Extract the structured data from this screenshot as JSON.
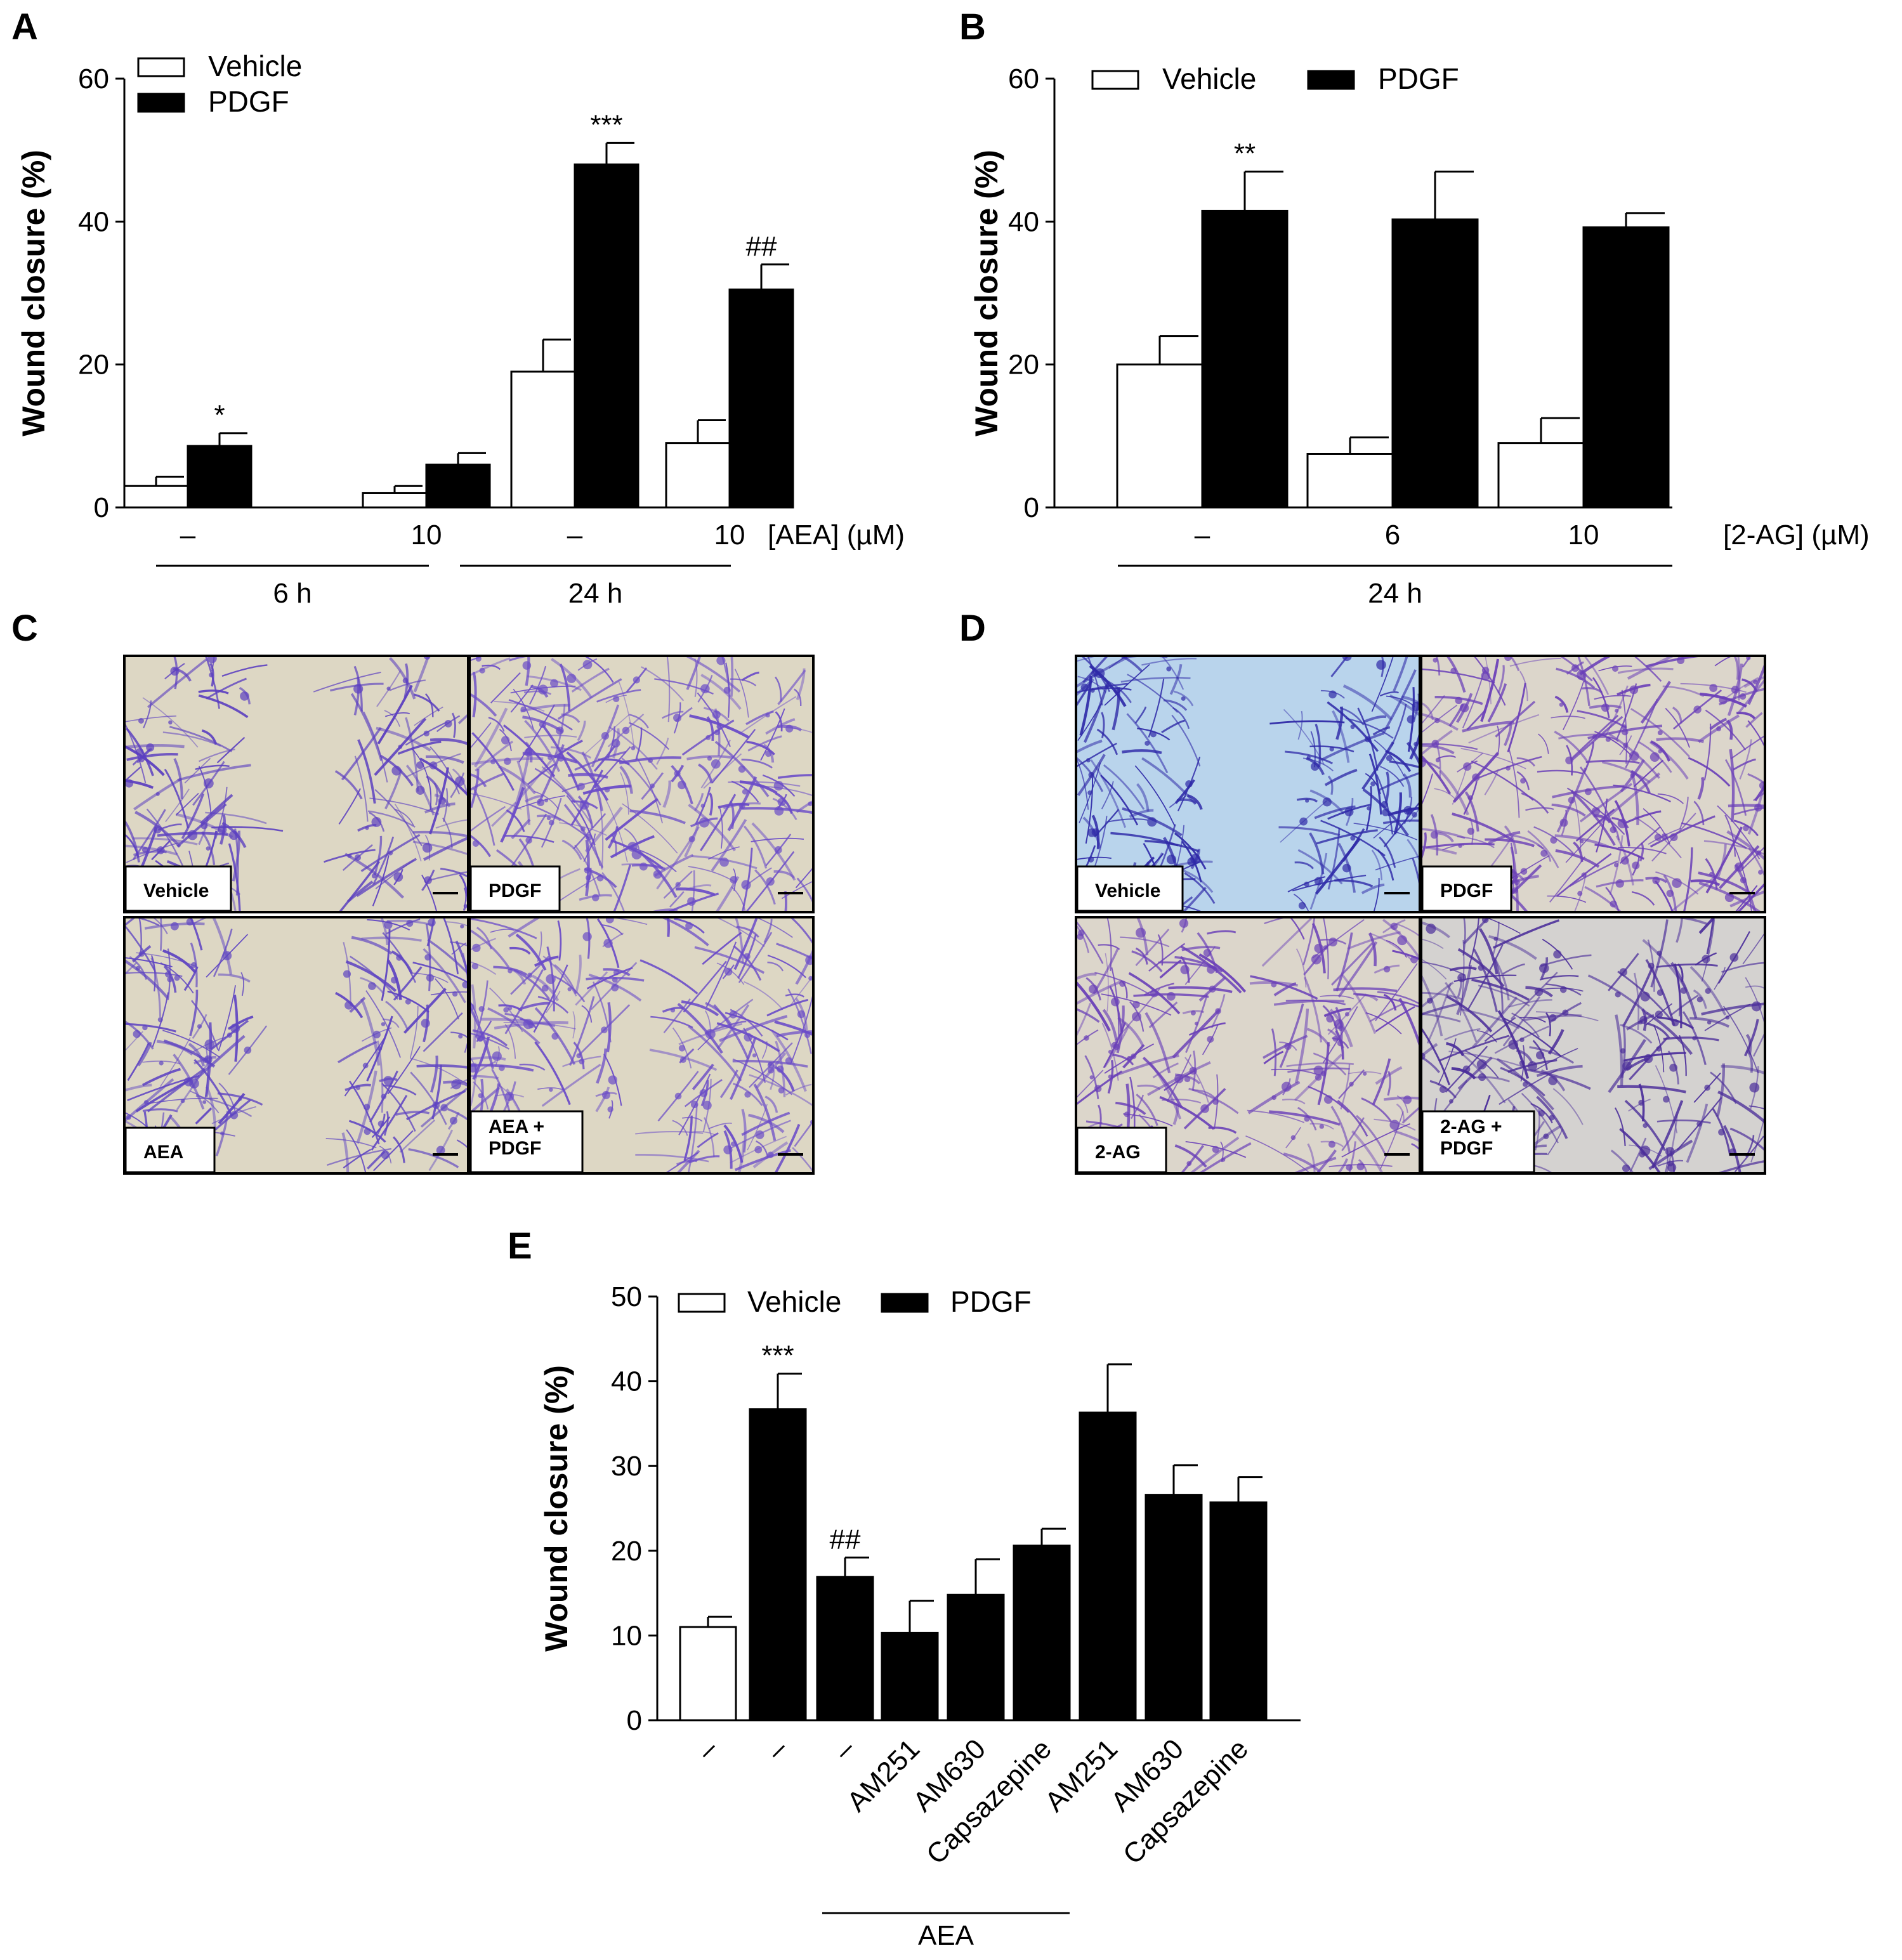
{
  "chart_data": [
    {
      "panel": "A",
      "type": "bar",
      "ylabel": "Wound closure (%)",
      "ylim": [
        0,
        60
      ],
      "yticks": [
        0,
        20,
        40,
        60
      ],
      "categories": [
        "–",
        "10",
        "–",
        "10"
      ],
      "category_axis_label": "[AEA] (µM)",
      "groups": [
        {
          "label": "6 h",
          "categories": [
            0,
            1
          ]
        },
        {
          "label": "24 h",
          "categories": [
            2,
            3
          ]
        }
      ],
      "series": [
        {
          "name": "Vehicle",
          "fill": "#ffffff",
          "values": [
            3,
            2,
            19,
            9
          ],
          "errors": [
            1.3,
            1.0,
            4.5,
            3.2
          ]
        },
        {
          "name": "PDGF",
          "fill": "#000000",
          "values": [
            8.6,
            6,
            48,
            30.5
          ],
          "errors": [
            1.8,
            1.6,
            3,
            3.5
          ]
        }
      ],
      "annotations": [
        {
          "category": 0,
          "series": "PDGF",
          "text": "*"
        },
        {
          "category": 2,
          "series": "PDGF",
          "text": "***"
        },
        {
          "category": 3,
          "series": "PDGF",
          "text": "##"
        }
      ],
      "legend": "top-left"
    },
    {
      "panel": "B",
      "type": "bar",
      "ylabel": "Wound closure (%)",
      "ylim": [
        0,
        60
      ],
      "yticks": [
        0,
        20,
        40,
        60
      ],
      "categories": [
        "–",
        "6",
        "10"
      ],
      "category_axis_label": "[2-AG] (µM)",
      "groups": [
        {
          "label": "24 h",
          "categories": [
            0,
            1,
            2
          ]
        }
      ],
      "series": [
        {
          "name": "Vehicle",
          "fill": "#ffffff",
          "values": [
            20,
            7.5,
            9
          ],
          "errors": [
            4,
            2.3,
            3.5
          ]
        },
        {
          "name": "PDGF",
          "fill": "#000000",
          "values": [
            41.5,
            40.3,
            39.2
          ],
          "errors": [
            5.5,
            6.7,
            2
          ]
        }
      ],
      "annotations": [
        {
          "category": 0,
          "series": "PDGF",
          "text": "**"
        }
      ],
      "legend": "top"
    },
    {
      "panel": "E",
      "type": "bar",
      "ylabel": "Wound closure (%)",
      "ylim": [
        0,
        50
      ],
      "yticks": [
        0,
        10,
        20,
        30,
        40,
        50
      ],
      "categories": [
        "–",
        "–",
        "–",
        "AM251",
        "AM630",
        "Capsazepine",
        "AM251",
        "AM630",
        "Capsazepine"
      ],
      "values": [
        11,
        36.7,
        16.9,
        10.3,
        14.8,
        20.6,
        36.3,
        26.6,
        25.7
      ],
      "errors": [
        1.2,
        4.2,
        2.3,
        3.8,
        4.2,
        2.0,
        5.7,
        3.5,
        3.0
      ],
      "bar_series": [
        "Vehicle",
        "PDGF",
        "PDGF",
        "PDGF",
        "PDGF",
        "PDGF",
        "PDGF",
        "PDGF",
        "PDGF"
      ],
      "series": [
        {
          "name": "Vehicle",
          "fill": "#ffffff"
        },
        {
          "name": "PDGF",
          "fill": "#000000"
        }
      ],
      "groups": [
        {
          "label": "AEA",
          "categories": [
            2,
            3,
            4,
            5
          ]
        }
      ],
      "annotations": [
        {
          "category": 1,
          "text": "***"
        },
        {
          "category": 2,
          "text": "##"
        }
      ],
      "legend": "top-left"
    }
  ],
  "micrographs": {
    "C": {
      "letter": "C",
      "tiles": [
        {
          "lines": [
            "Vehicle"
          ],
          "gap": "wide",
          "bg": "#ddd7c4",
          "cell": "#5b3fc0"
        },
        {
          "lines": [
            "PDGF"
          ],
          "gap": "none",
          "bg": "#ddd7c4",
          "cell": "#6a4bc8"
        },
        {
          "lines": [
            "AEA"
          ],
          "gap": "wide",
          "bg": "#ddd7c4",
          "cell": "#5e44c2"
        },
        {
          "lines": [
            "AEA  +",
            "PDGF"
          ],
          "gap": "narrow",
          "bg": "#ddd7c4",
          "cell": "#6a4bc8"
        }
      ]
    },
    "D": {
      "letter": "D",
      "tiles": [
        {
          "lines": [
            "Vehicle"
          ],
          "gap": "wide",
          "bg": "#b9d4ec",
          "cell": "#2f2aa8"
        },
        {
          "lines": [
            "PDGF"
          ],
          "gap": "none",
          "bg": "#dcd6cb",
          "cell": "#6a3fb8"
        },
        {
          "lines": [
            "2-AG"
          ],
          "gap": "narrow",
          "bg": "#dcd6cb",
          "cell": "#6a40b8"
        },
        {
          "lines": [
            "2-AG +",
            "PDGF"
          ],
          "gap": "narrow",
          "bg": "#d4d2d0",
          "cell": "#4a2c9a"
        }
      ]
    }
  }
}
